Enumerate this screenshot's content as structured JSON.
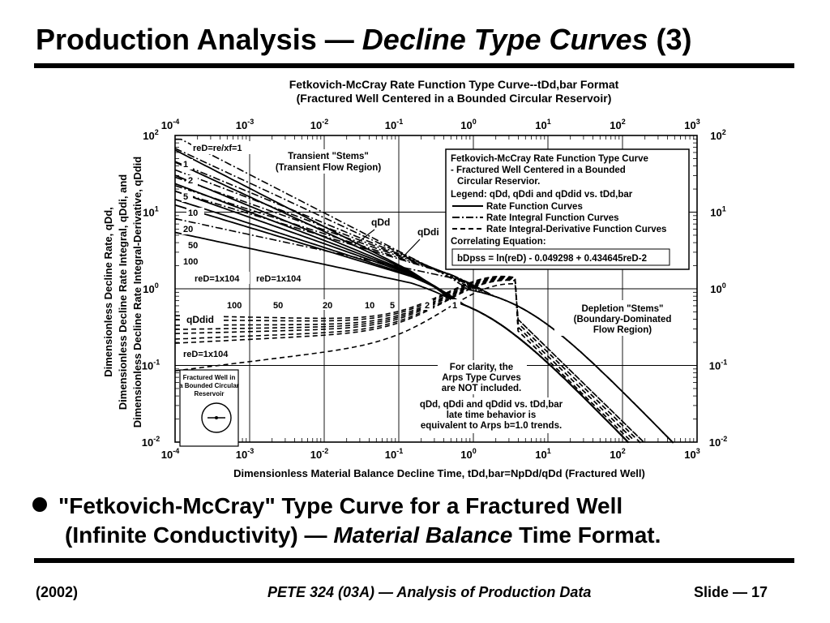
{
  "slide": {
    "title_main": "Production Analysis — ",
    "title_italic": "Decline Type Curves",
    "title_tail": " (3)"
  },
  "chart_data": {
    "type": "line",
    "title_line1": "Fetkovich-McCray Rate Function Type Curve--tDd,bar Format",
    "title_line2": "(Fractured Well Centered in a Bounded Circular Reservoir)",
    "xlabel": "Dimensionless Material Balance Decline Time, tDd,bar=NpDd/qDd (Fractured Well)",
    "ylabel_lines": [
      "Dimensionless Decline Rate, qDd,",
      "Dimensionless Decline Rate Integral, qDdi, and",
      "Dimensionless Decline Rate Integral-Derivative, qDdid"
    ],
    "x_log_range": [
      -4,
      3
    ],
    "y_log_range": [
      -2,
      2
    ],
    "x_ticks": [
      "10-4",
      "10-3",
      "10-2",
      "10-1",
      "100",
      "101",
      "102",
      "103"
    ],
    "y_ticks": [
      "10-2",
      "10-1",
      "100",
      "101",
      "102"
    ],
    "scale": "log-log",
    "grid": true,
    "legend": {
      "title1": "Fetkovich-McCray Rate Function Type Curve",
      "title2": " - Fractured Well Centered in a Bounded",
      "title3": "   Circular Reservior.",
      "legend_line": "Legend: qDd, qDdi and qDdid vs. tDd,bar",
      "items": [
        "Rate Function Curves",
        "Rate Integral Function Curves",
        "Rate Integral-Derivative Function Curves"
      ],
      "corr_label": "Correlating Equation:",
      "corr_eq": "bDpss = ln(reD) - 0.049298 + 0.434645reD-2"
    },
    "annotations": {
      "transient_1": "Transient \"Stems\"",
      "transient_2": "(Transient Flow Region)",
      "depletion_1": "Depletion \"Stems\"",
      "depletion_2": "(Boundary-Dominated",
      "depletion_3": "Flow Region)",
      "clarity_1": "For clarity, the",
      "clarity_2": "Arps Type Curves",
      "clarity_3": "are NOT included.",
      "late_1": "qDd, qDdi and qDdid vs. tDd,bar",
      "late_2": "late time behavior is",
      "late_3": "equivalent to Arps b=1.0 trends.",
      "qDd": "qDd",
      "qDdi": "qDdi",
      "qDdid": "qDdid",
      "reD_top": "reD=re/xf=1",
      "reD_1e4_a": "reD=1x104",
      "reD_1e4_b": "reD=1x104",
      "reD_1e4_c": "reD=1x104",
      "inset_1": "Fractured Well in",
      "inset_2": "a Bounded Circular",
      "inset_3": "Reservoir",
      "stem_labels": [
        "1",
        "2",
        "5",
        "10",
        "20",
        "50",
        "100"
      ],
      "bottom_labels": [
        "100",
        "50",
        "20",
        "10",
        "5",
        "2",
        "1"
      ]
    },
    "series": [
      {
        "name": "Rate Function Curves",
        "style": "solid",
        "reD": [
          1,
          2,
          5,
          10,
          20,
          50,
          100,
          10000
        ]
      },
      {
        "name": "Rate Integral Function Curves",
        "style": "dash-dot",
        "reD": [
          1,
          2,
          5,
          10,
          20,
          50,
          100,
          10000
        ]
      },
      {
        "name": "Rate Integral-Derivative Function Curves",
        "style": "dashed",
        "reD": [
          1,
          2,
          5,
          10,
          20,
          50,
          100,
          10000
        ]
      }
    ]
  },
  "bullet": {
    "line1": "\"Fetkovich-McCray\" Type Curve for a Fractured Well",
    "line2_a": "(Infinite Conductivity) — ",
    "line2_italic": "Material Balance",
    "line2_b": " Time Format."
  },
  "footer": {
    "year": "(2002)",
    "course": "PETE 324 (03A) — Analysis of Production Data",
    "slide": "Slide — 17"
  }
}
